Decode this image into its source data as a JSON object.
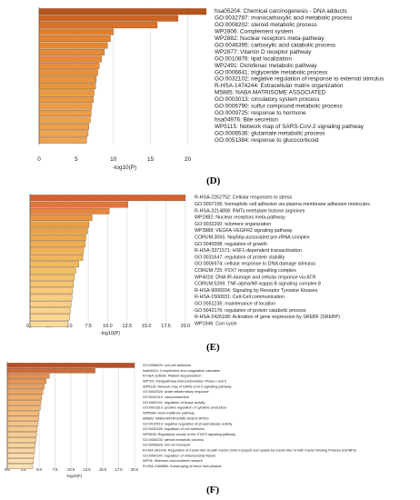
{
  "panel_labels": [
    "(D)",
    "(E)",
    "(F)"
  ],
  "chart_data": [
    {
      "type": "bar",
      "orientation": "horizontal",
      "panel": "(D)",
      "xlabel": "-log10(P)",
      "xlim": [
        0,
        23
      ],
      "xticks": [
        0,
        5,
        10,
        15,
        20
      ],
      "grid": true,
      "categories": [
        "hsa05204: Chemical carcinogenesis - DNA adducts",
        "GO:0032787: monocarboxylic acid metabolic process",
        "GO:0008202: steroid metabolic process",
        "WP2806: Complement system",
        "WP2882: Nuclear receptors meta-pathway",
        "GO:0046395: carboxylic acid catabolic process",
        "WP2877: Vitamin D receptor pathway",
        "GO:0010876: lipid localization",
        "WP2491: Diclofenac metabolic pathway",
        "GO:0006641: triglyceride metabolic process",
        "GO:0032102: negative regulation of response to external stimulus",
        "R-HSA-1474244: Extracellular matrix organization",
        "M5885: NABA MATRISOME ASSOCIATED",
        "GO:0003013: circulatory system process",
        "GO:0006790: sulfur compound metabolic process",
        "GO:0009725: response to hormone",
        "hsa04976: Bile secretion",
        "WP5115: Network map of SARS-CoV-2 signaling pathway",
        "GO:0006536: glutamate metabolic process",
        "GO:0051384: response to glucocorticoid"
      ],
      "values": [
        22.5,
        18.7,
        15.9,
        10.0,
        9.6,
        9.2,
        8.8,
        8.4,
        8.1,
        7.9,
        7.7,
        7.6,
        7.4,
        7.3,
        7.1,
        7.0,
        6.9,
        6.7,
        6.6,
        6.4
      ],
      "colors": [
        "#b5541c",
        "#cc6424",
        "#db7127",
        "#e27f2e",
        "#e58633",
        "#e58633",
        "#e78b38",
        "#e78b38",
        "#e8903c",
        "#e8903c",
        "#e9943f",
        "#e9943f",
        "#ea9843",
        "#ea9843",
        "#ec9c47",
        "#ec9c47",
        "#eda14b",
        "#eda14b",
        "#eea54f",
        "#eea54f"
      ]
    },
    {
      "type": "bar",
      "orientation": "horizontal",
      "panel": "(E)",
      "xlabel": "-log10(P)",
      "xlim": [
        0,
        20.6
      ],
      "xticks": [
        0.0,
        2.5,
        5.0,
        7.5,
        10.0,
        12.5,
        15.0,
        17.5,
        20.0
      ],
      "xtick_labels": [
        "0.0",
        "2.5",
        "5.0",
        "7.5",
        "10.0",
        "12.5",
        "15.0",
        "17.5",
        "20.0"
      ],
      "grid": true,
      "categories": [
        "R-HSA-2262752: Cellular responses to stress",
        "GO:0007156: homophilic cell adhesion via plasma membrane adhesion molecules",
        "R-HSA-3214858: RMTs methylate histone arginines",
        "WP2882: Nuclear receptors meta-pathway",
        "GO:0032200: telomere organization",
        "WP3888: VEGFA-VEGFR2 signaling pathway",
        "CORUM:3055: Nop56p-associated pre-rRNA complex",
        "GO:0040008: regulation of growth",
        "R-HSA-3371571: HSF1-dependent transactivation",
        "GO:0031647: regulation of protein stability",
        "GO:0006974: cellular response to DNA damage stimulus",
        "CORUM:725: P2X7 receptor signalling complex",
        "WP4016: DNA IR-damage and cellular response via ATR",
        "CORUM:5269: TNF-alpha/NF-kappa B signaling complex 8",
        "R-HSA-9006934: Signaling by Receptor Tyrosine Kinases",
        "R-HSA-1500931: Cell-Cell communication",
        "GO:0051235: maintenance of location",
        "GO:0042176: regulation of protein catabolic process",
        "R-HSA-2426168: Activation of gene expression by SREBF (SREBP)",
        "WP1946: Cori cycle"
      ],
      "values": [
        20.0,
        12.6,
        10.2,
        8.0,
        7.6,
        7.4,
        7.2,
        7.1,
        6.9,
        6.8,
        6.3,
        5.9,
        5.7,
        5.6,
        5.5,
        5.4,
        5.3,
        5.2,
        5.1,
        4.9
      ],
      "colors": [
        "#d9622b",
        "#e0773a",
        "#e5853f",
        "#e8943f",
        "#eb9d42",
        "#eba346",
        "#eda84a",
        "#eead4e",
        "#efb253",
        "#f0b658",
        "#f1ba5e",
        "#f3be64",
        "#f4c26a",
        "#f5c670",
        "#f6ca77",
        "#f7cd7e",
        "#f8d085",
        "#f9d38c",
        "#fad693",
        "#fbda9a"
      ]
    },
    {
      "type": "bar",
      "orientation": "horizontal",
      "panel": "(F)",
      "xlabel": "-log10(P)",
      "xlim": [
        0,
        21
      ],
      "xticks": [
        0.0,
        2.5,
        5.0,
        7.5,
        10.0,
        12.5,
        15.0,
        17.5,
        20.0
      ],
      "xtick_labels": [
        "0.0",
        "2.5",
        "5.0",
        "7.5",
        "10.0",
        "12.5",
        "15.0",
        "17.5",
        "20.0"
      ],
      "grid": true,
      "categories": [
        "GO:0098609: cell-cell adhesion",
        "hsa04610: Complement and coagulation cascades",
        "R-HSA-114608: Platelet degranulation",
        "WP702: Metapathway biotransformation Phase I and II",
        "WP5115: Network map of SARS-CoV-2 signaling pathway",
        "GO:0002526: acute inflammatory response",
        "GO:0042310: vasoconstriction",
        "GO:0060191: regulation of lipase activity",
        "GO:0001819: positive regulation of cytokine production",
        "WP5089: Kinin-Kallikrein pathway",
        "M5885: NABA MATRISOME ASSOCIATED",
        "GO:0010519: negative regulation of phospholipase activity",
        "GO:0030155: regulation of cell adhesion",
        "WP4538: Regulatory circuits of the STAT3 signaling pathway",
        "GO:0008202: steroid metabolic process",
        "GO:0006826: iron ion transport",
        "R-HSA-381426: Regulation of Insulin-like Growth Factor (IGF) transport and uptake by Insulin-like Growth Factor Binding Proteins (IGFBPs)",
        "GO:0090140: regulation of mitochondrial fission",
        "WP15: Selenium micronutrient network",
        "R-HSA-2168880: Scavenging of heme from plasma"
      ],
      "values": [
        20.0,
        13.8,
        6.6,
        6.1,
        5.8,
        5.6,
        5.4,
        5.3,
        5.2,
        5.0,
        4.9,
        4.8,
        4.7,
        4.6,
        4.5,
        4.4,
        4.3,
        4.2,
        4.1,
        4.0
      ],
      "colors": [
        "#b8502b",
        "#cd6a3d",
        "#e39055",
        "#e6985a",
        "#e89f60",
        "#eaa665",
        "#ecac6b",
        "#eeb270",
        "#f0b776",
        "#f1bc7c",
        "#f2c082",
        "#f3c488",
        "#f4c88e",
        "#f5cc94",
        "#f6d09a",
        "#f7d4a0",
        "#f8d7a6",
        "#f9dbac",
        "#fadfb2",
        "#fbe2b8"
      ]
    }
  ]
}
